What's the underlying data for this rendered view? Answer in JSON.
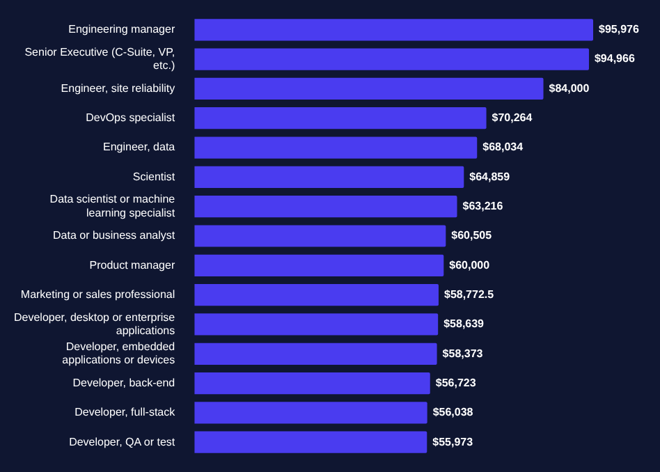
{
  "chart_data": {
    "type": "bar",
    "orientation": "horizontal",
    "data_labels": true,
    "categories": [
      "Engineering manager",
      "Senior Executive (C-Suite, VP, etc.)",
      "Engineer, site reliability",
      "DevOps specialist",
      "Engineer, data",
      "Scientist",
      "Data scientist or machine learning specialist",
      "Data or business analyst",
      "Product manager",
      "Marketing or sales professional",
      "Developer, desktop or enterprise applications",
      "Developer, embedded applications or devices",
      "Developer, back-end",
      "Developer, full-stack",
      "Developer, QA or test"
    ],
    "values": [
      95976,
      94966,
      84000,
      70264,
      68034,
      64859,
      63216,
      60505,
      60000,
      58772.5,
      58639,
      58373,
      56723,
      56038,
      55973
    ],
    "value_labels": [
      "$95,976",
      "$94,966",
      "$84,000",
      "$70,264",
      "$68,034",
      "$64,859",
      "$63,216",
      "$60,505",
      "$60,000",
      "$58,772.5",
      "$58,639",
      "$58,373",
      "$56,723",
      "$56,038",
      "$55,973"
    ],
    "color": "#4a3cf0"
  }
}
